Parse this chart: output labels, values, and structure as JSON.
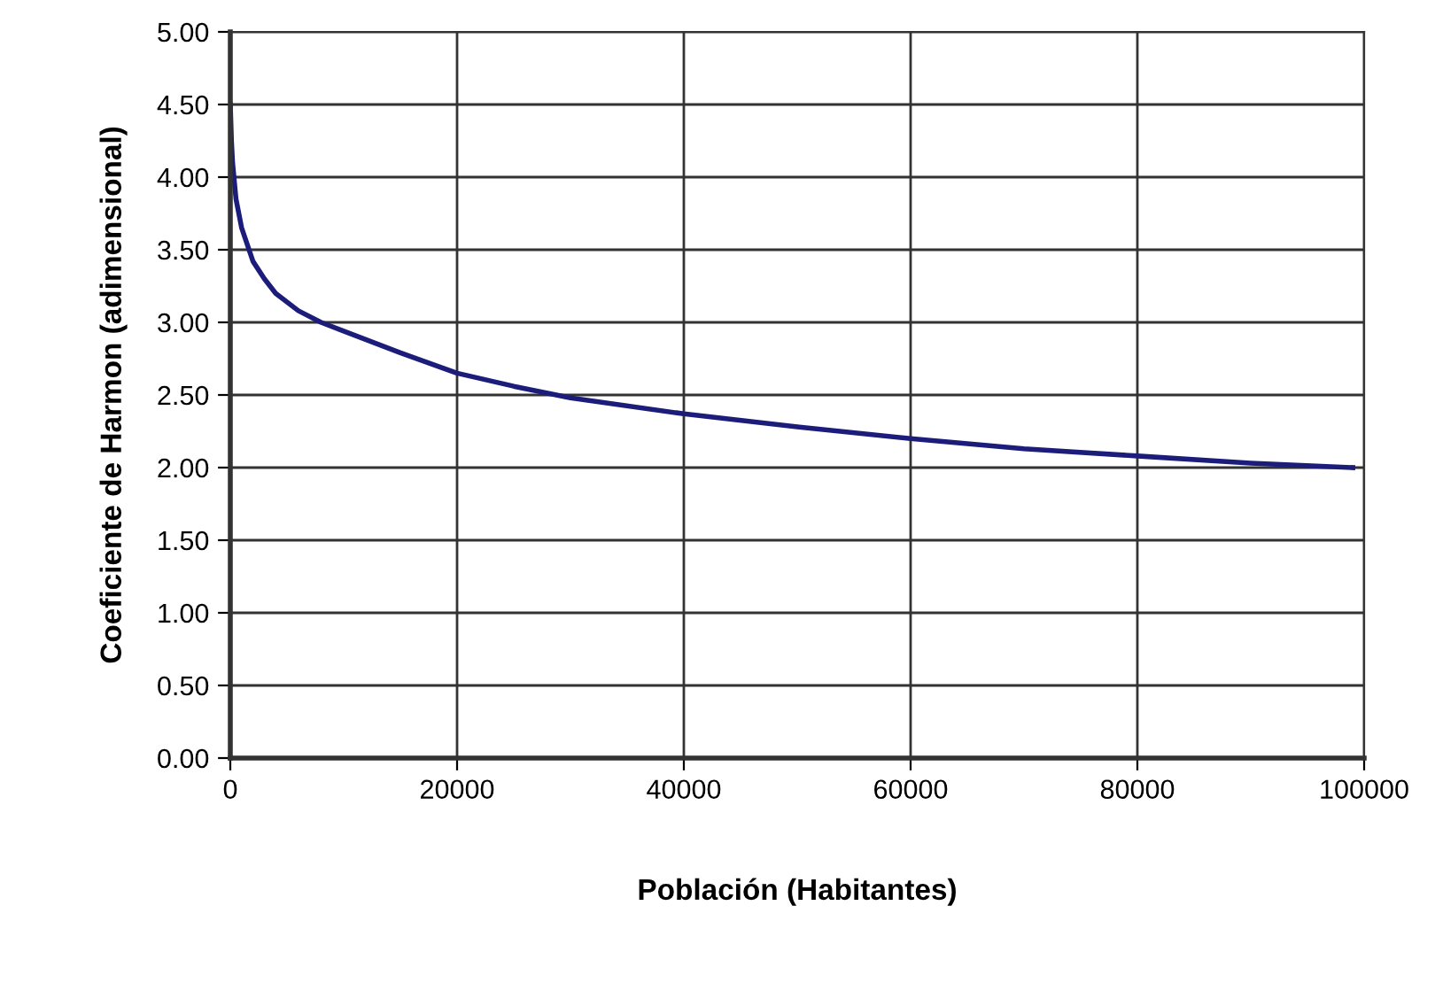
{
  "chart_data": {
    "type": "line",
    "xlabel": "Población (Habitantes)",
    "ylabel": "Coeficiente de Harmon (adimensional)",
    "x": [
      0,
      100,
      200,
      500,
      1000,
      2000,
      3000,
      4000,
      6000,
      8000,
      10000,
      15000,
      20000,
      25000,
      30000,
      40000,
      50000,
      60000,
      70000,
      80000,
      90000,
      99000
    ],
    "series": [
      {
        "color": "#1c1c7a",
        "values": [
          4.5,
          4.25,
          4.1,
          3.85,
          3.65,
          3.42,
          3.3,
          3.2,
          3.08,
          3.0,
          2.94,
          2.79,
          2.65,
          2.56,
          2.48,
          2.37,
          2.28,
          2.2,
          2.13,
          2.08,
          2.03,
          2.0
        ]
      }
    ],
    "xlim": [
      0,
      100000
    ],
    "xticks": [
      0,
      20000,
      40000,
      60000,
      80000,
      100000
    ],
    "ylim": [
      0,
      5
    ],
    "yticks": [
      {
        "value": 0,
        "label": "0.00"
      },
      {
        "value": 0.5,
        "label": "0.50"
      },
      {
        "value": 1,
        "label": "1.00"
      },
      {
        "value": 1.5,
        "label": "1.50"
      },
      {
        "value": 2,
        "label": "2.00"
      },
      {
        "value": 2.5,
        "label": "2.50"
      },
      {
        "value": 3,
        "label": "3.00"
      },
      {
        "value": 3.5,
        "label": "3.50"
      },
      {
        "value": 4,
        "label": "4.00"
      },
      {
        "value": 4.5,
        "label": "4.50"
      },
      {
        "value": 5,
        "label": "5.00"
      }
    ],
    "grid": true,
    "legend": false,
    "marker": "none",
    "line_style": "solid"
  }
}
